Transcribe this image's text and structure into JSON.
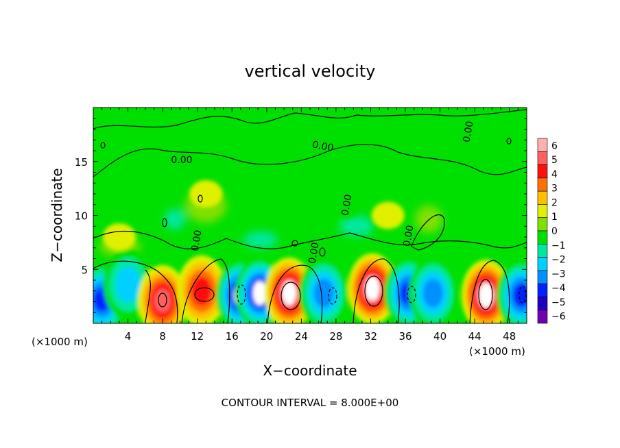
{
  "chart_data": {
    "type": "heatmap",
    "title": "vertical velocity",
    "xlabel": "X−coordinate",
    "ylabel": "Z−coordinate",
    "x_unit_left": "(×1000 m)",
    "x_unit_right": "(×1000 m)",
    "footer": "CONTOUR INTERVAL = 8.000E+00",
    "xlim": [
      0,
      50
    ],
    "ylim": [
      0,
      20
    ],
    "x_ticks": [
      4,
      8,
      12,
      16,
      20,
      24,
      28,
      32,
      36,
      40,
      44,
      48
    ],
    "y_ticks": [
      5,
      10,
      15
    ],
    "contour_labels": [
      "0.00",
      "0.00",
      "0.00",
      "0.00",
      "0.00",
      "0.00",
      "0.00"
    ],
    "colorbar": {
      "ticks": [
        "6",
        "5",
        "4",
        "3",
        "2",
        "1",
        "0",
        "−1",
        "−2",
        "−3",
        "−4",
        "−5",
        "−6"
      ],
      "values": [
        6,
        5,
        4,
        3,
        2,
        1,
        0,
        -1,
        -2,
        -3,
        -4,
        -5,
        -6
      ],
      "colors": [
        "#ffb0b0",
        "#ff6060",
        "#ff1010",
        "#ff7000",
        "#ffc000",
        "#e0f000",
        "#80e000",
        "#00e000",
        "#00e8a0",
        "#00d0ff",
        "#0090ff",
        "#0020ff",
        "#2000c0",
        "#7000b0"
      ]
    },
    "cells": [
      {
        "x": 1,
        "z": 2.2,
        "w": -5
      },
      {
        "x": 4,
        "z": 3.6,
        "w": -3
      },
      {
        "x": 8,
        "z": 2.1,
        "w": 5
      },
      {
        "x": 12.5,
        "z": 3.0,
        "w": 4
      },
      {
        "x": 17,
        "z": 2.6,
        "w": -6
      },
      {
        "x": 19.2,
        "z": 2.8,
        "w": -6
      },
      {
        "x": 22.6,
        "z": 2.8,
        "w": 6
      },
      {
        "x": 26.6,
        "z": 2.8,
        "w": -4
      },
      {
        "x": 32.2,
        "z": 3.2,
        "w": 6
      },
      {
        "x": 36.4,
        "z": 2.8,
        "w": -5
      },
      {
        "x": 39.2,
        "z": 2.8,
        "w": -4
      },
      {
        "x": 45.3,
        "z": 2.6,
        "w": 6
      },
      {
        "x": 49.4,
        "z": 2.6,
        "w": -5
      },
      {
        "x": 13,
        "z": 12,
        "w": 1
      },
      {
        "x": 3,
        "z": 8,
        "w": 1
      },
      {
        "x": 29,
        "z": 11,
        "w": -1
      },
      {
        "x": 34,
        "z": 10,
        "w": 1
      },
      {
        "x": 38,
        "z": 16,
        "w": -1
      }
    ]
  }
}
